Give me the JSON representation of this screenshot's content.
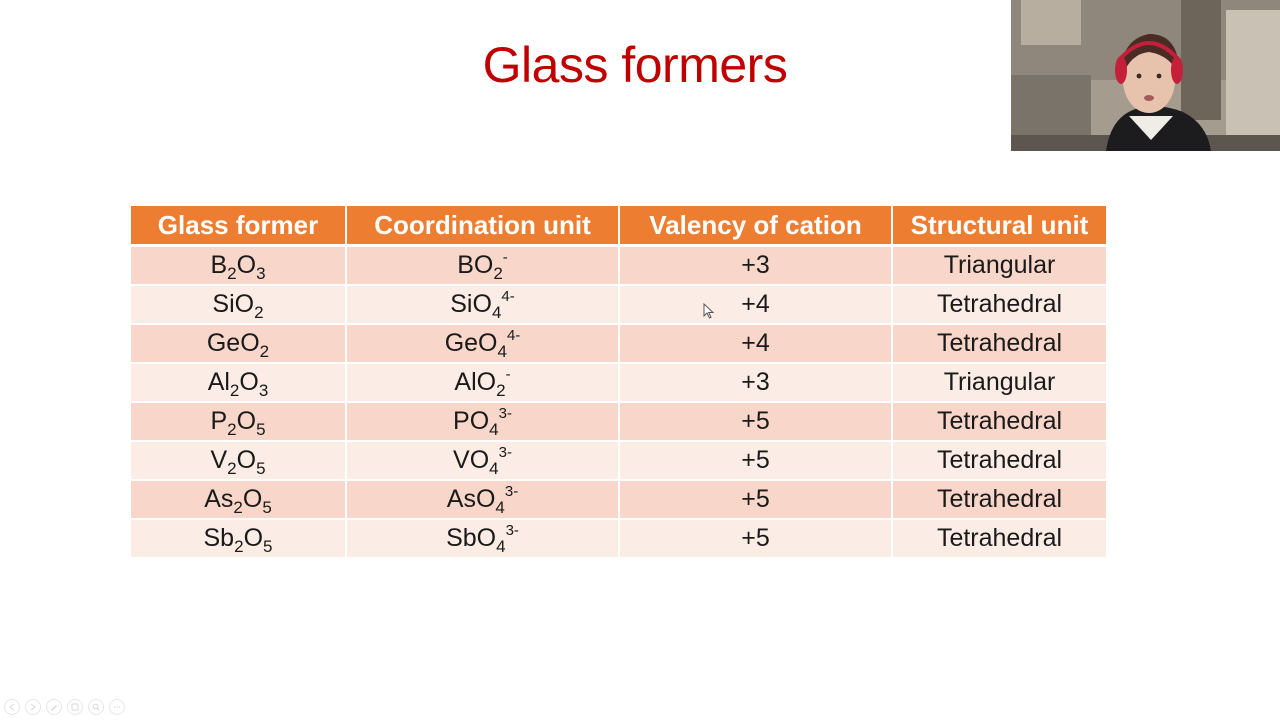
{
  "slide": {
    "title": "Glass formers"
  },
  "table": {
    "headers": [
      "Glass former",
      "Coordination unit",
      "Valency of cation",
      "Structural unit"
    ],
    "rows": [
      {
        "former": {
          "a": "B",
          "a_sub": "2",
          "b": "O",
          "b_sub": "3"
        },
        "unit": {
          "a": "BO",
          "a_sub": "2",
          "sup": "-"
        },
        "valency": "+3",
        "structural": "Triangular"
      },
      {
        "former": {
          "a": "SiO",
          "a_sub": "2",
          "b": "",
          "b_sub": ""
        },
        "unit": {
          "a": "SiO",
          "a_sub": "4",
          "sup": "4-"
        },
        "valency": "+4",
        "structural": "Tetrahedral"
      },
      {
        "former": {
          "a": "GeO",
          "a_sub": "2",
          "b": "",
          "b_sub": ""
        },
        "unit": {
          "a": "GeO",
          "a_sub": "4",
          "sup": "4-"
        },
        "valency": "+4",
        "structural": "Tetrahedral"
      },
      {
        "former": {
          "a": "Al",
          "a_sub": "2",
          "b": "O",
          "b_sub": "3"
        },
        "unit": {
          "a": "AlO",
          "a_sub": "2",
          "sup": "-"
        },
        "valency": "+3",
        "structural": "Triangular"
      },
      {
        "former": {
          "a": "P",
          "a_sub": "2",
          "b": "O",
          "b_sub": "5"
        },
        "unit": {
          "a": "PO",
          "a_sub": "4",
          "sup": "3-"
        },
        "valency": "+5",
        "structural": "Tetrahedral"
      },
      {
        "former": {
          "a": "V",
          "a_sub": "2",
          "b": "O",
          "b_sub": "5"
        },
        "unit": {
          "a": "VO",
          "a_sub": "4",
          "sup": "3-"
        },
        "valency": "+5",
        "structural": "Tetrahedral"
      },
      {
        "former": {
          "a": "As",
          "a_sub": "2",
          "b": "O",
          "b_sub": "5"
        },
        "unit": {
          "a": "AsO",
          "a_sub": "4",
          "sup": "3-"
        },
        "valency": "+5",
        "structural": "Tetrahedral"
      },
      {
        "former": {
          "a": "Sb",
          "a_sub": "2",
          "b": "O",
          "b_sub": "5"
        },
        "unit": {
          "a": "SbO",
          "a_sub": "4",
          "sup": "3-"
        },
        "valency": "+5",
        "structural": "Tetrahedral"
      }
    ]
  },
  "toolbar": {
    "icons": [
      "previous-icon",
      "next-icon",
      "pen-icon",
      "slides-icon",
      "zoom-icon",
      "more-icon"
    ]
  },
  "colors": {
    "title": "#c00000",
    "header_bg": "#ed7d31",
    "row_odd": "#f8d6c9",
    "row_even": "#fbece6"
  }
}
